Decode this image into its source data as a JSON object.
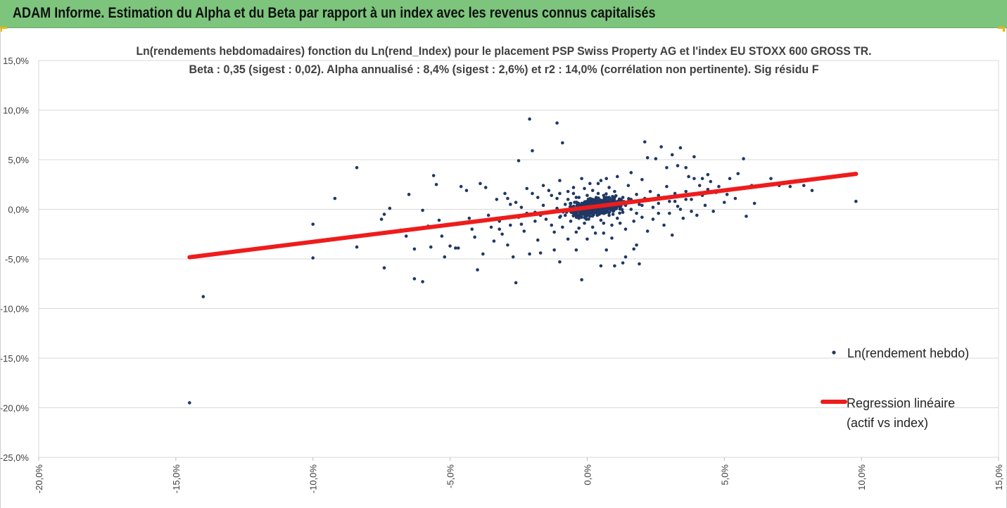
{
  "header": {
    "title": "ADAM Informe. Estimation du Alpha et du Beta par rapport à un index avec les revenus connus capitalisés",
    "background": "#7dc57d",
    "corner_color": "#f0b400"
  },
  "chart_data": {
    "type": "scatter",
    "title_line1": "Ln(rendements hebdomadaires) fonction du Ln(rend_Index) pour le placement PSP Swiss Property AG et l'index EU STOXX 600 GROSS TR.",
    "title_line2": "Beta : 0,35 (sigest : 0,02). Alpha annualisé : 8,4% (sigest : 2,6%) et r2 : 14,0% (corrélation non pertinente). Sig résidu F",
    "xlim": [
      -0.2,
      0.15
    ],
    "ylim": [
      -0.25,
      0.15
    ],
    "x_ticks": [
      {
        "value": -0.2,
        "label": "-20,0%"
      },
      {
        "value": -0.15,
        "label": "-15,0%"
      },
      {
        "value": -0.1,
        "label": "-10,0%"
      },
      {
        "value": -0.05,
        "label": "-5,0%"
      },
      {
        "value": 0.0,
        "label": "0,0%"
      },
      {
        "value": 0.05,
        "label": "5,0%"
      },
      {
        "value": 0.1,
        "label": "10,0%"
      },
      {
        "value": 0.15,
        "label": "15,0%"
      }
    ],
    "y_ticks": [
      {
        "value": 0.15,
        "label": "15,0%"
      },
      {
        "value": 0.1,
        "label": "10,0%"
      },
      {
        "value": 0.05,
        "label": "5,0%"
      },
      {
        "value": 0.0,
        "label": "0,0%"
      },
      {
        "value": -0.05,
        "label": "-5,0%"
      },
      {
        "value": -0.1,
        "label": "-10,0%"
      },
      {
        "value": -0.15,
        "label": "-15,0%"
      },
      {
        "value": -0.2,
        "label": "-20,0%"
      },
      {
        "value": -0.25,
        "label": "-25,0%"
      }
    ],
    "grid": true,
    "legend_position": "right",
    "series": [
      {
        "name": "Ln(rendement hebdo)",
        "kind": "scatter",
        "color": "#1f3864",
        "points": [
          [
            -0.145,
            -0.195
          ],
          [
            -0.14,
            -0.088
          ],
          [
            -0.14,
            -0.047
          ],
          [
            -0.1,
            -0.049
          ],
          [
            -0.1,
            -0.015
          ],
          [
            -0.092,
            0.011
          ],
          [
            -0.084,
            0.042
          ],
          [
            -0.084,
            -0.038
          ],
          [
            -0.074,
            -0.059
          ],
          [
            -0.074,
            -0.005
          ],
          [
            -0.075,
            -0.01
          ],
          [
            -0.072,
            0.001
          ],
          [
            -0.068,
            -0.021
          ],
          [
            -0.066,
            -0.027
          ],
          [
            -0.065,
            0.015
          ],
          [
            -0.063,
            -0.04
          ],
          [
            -0.063,
            -0.07
          ],
          [
            -0.06,
            -0.073
          ],
          [
            -0.06,
            -0.001
          ],
          [
            -0.058,
            -0.017
          ],
          [
            -0.057,
            -0.038
          ],
          [
            -0.056,
            0.034
          ],
          [
            -0.055,
            0.025
          ],
          [
            -0.054,
            -0.011
          ],
          [
            -0.053,
            -0.027
          ],
          [
            -0.052,
            -0.048
          ],
          [
            -0.05,
            -0.037
          ],
          [
            -0.048,
            -0.039
          ],
          [
            -0.047,
            -0.039
          ],
          [
            -0.046,
            0.023
          ],
          [
            -0.045,
            -0.014
          ],
          [
            -0.044,
            0.019
          ],
          [
            -0.043,
            -0.009
          ],
          [
            -0.042,
            -0.02
          ],
          [
            -0.041,
            -0.028
          ],
          [
            -0.04,
            -0.061
          ],
          [
            -0.039,
            0.026
          ],
          [
            -0.038,
            -0.045
          ],
          [
            -0.037,
            0.022
          ],
          [
            -0.036,
            -0.006
          ],
          [
            -0.035,
            -0.018
          ],
          [
            -0.034,
            -0.032
          ],
          [
            -0.033,
            0.01
          ],
          [
            -0.032,
            -0.012
          ],
          [
            -0.031,
            -0.025
          ],
          [
            -0.03,
            0.016
          ],
          [
            -0.029,
            -0.036
          ],
          [
            -0.028,
            0.005
          ],
          [
            -0.027,
            -0.048
          ],
          [
            -0.026,
            -0.074
          ],
          [
            -0.026,
            0.007
          ],
          [
            -0.025,
            0.049
          ],
          [
            -0.024,
            -0.015
          ],
          [
            -0.023,
            -0.022
          ],
          [
            -0.022,
            0.021
          ],
          [
            -0.021,
            -0.045
          ],
          [
            -0.02,
            0.059
          ],
          [
            -0.019,
            -0.003
          ],
          [
            -0.018,
            0.012
          ],
          [
            -0.018,
            -0.031
          ],
          [
            -0.017,
            -0.044
          ],
          [
            -0.016,
            0.024
          ],
          [
            -0.015,
            -0.01
          ],
          [
            -0.014,
            -0.003
          ],
          [
            -0.013,
            0.014
          ],
          [
            -0.012,
            -0.023
          ],
          [
            -0.012,
            -0.041
          ],
          [
            -0.011,
            0.001
          ],
          [
            -0.01,
            -0.008
          ],
          [
            -0.01,
            0.029
          ],
          [
            -0.009,
            0.067
          ],
          [
            -0.009,
            -0.018
          ],
          [
            -0.008,
            0.005
          ],
          [
            -0.007,
            -0.03
          ],
          [
            -0.007,
            0.018
          ],
          [
            -0.021,
            0.091
          ],
          [
            -0.011,
            0.087
          ],
          [
            -0.006,
            0.006
          ],
          [
            -0.006,
            -0.012
          ],
          [
            -0.005,
            0.002
          ],
          [
            -0.005,
            0.022
          ],
          [
            -0.004,
            -0.004
          ],
          [
            -0.004,
            -0.023
          ],
          [
            -0.003,
            0.012
          ],
          [
            -0.003,
            -0.009
          ],
          [
            -0.002,
            0.003
          ],
          [
            -0.002,
            0.031
          ],
          [
            -0.001,
            -0.014
          ],
          [
            -0.001,
            0.007
          ],
          [
            0.0,
            -0.001
          ],
          [
            0.0,
            0.014
          ],
          [
            0.0,
            -0.03
          ],
          [
            0.001,
            0.004
          ],
          [
            0.001,
            -0.007
          ],
          [
            0.002,
            0.019
          ],
          [
            0.002,
            -0.018
          ],
          [
            0.003,
            0.001
          ],
          [
            0.003,
            0.01
          ],
          [
            0.004,
            -0.004
          ],
          [
            0.004,
            0.026
          ],
          [
            0.005,
            -0.011
          ],
          [
            0.005,
            0.006
          ],
          [
            0.006,
            -0.024
          ],
          [
            0.006,
            0.014
          ],
          [
            0.007,
            0.0
          ],
          [
            0.007,
            -0.041
          ],
          [
            0.008,
            0.022
          ],
          [
            0.008,
            -0.006
          ],
          [
            0.009,
            0.009
          ],
          [
            0.009,
            -0.016
          ],
          [
            -0.029,
            0.011
          ],
          [
            -0.024,
            0.002
          ],
          [
            -0.02,
            0.016
          ],
          [
            -0.017,
            -0.006
          ],
          [
            -0.014,
            0.019
          ],
          [
            -0.011,
            0.011
          ],
          [
            -0.008,
            -0.006
          ],
          [
            -0.005,
            0.016
          ],
          [
            -0.003,
            -0.019
          ],
          [
            -0.001,
            0.021
          ],
          [
            0.001,
            0.026
          ],
          [
            0.003,
            -0.024
          ],
          [
            0.005,
            0.029
          ],
          [
            0.007,
            0.031
          ],
          [
            0.009,
            -0.029
          ],
          [
            0.01,
            0.003
          ],
          [
            0.01,
            0.018
          ],
          [
            0.011,
            -0.009
          ],
          [
            0.011,
            0.033
          ],
          [
            0.012,
            0.006
          ],
          [
            0.013,
            -0.003
          ],
          [
            0.013,
            0.012
          ],
          [
            0.014,
            -0.02
          ],
          [
            0.015,
            0.008
          ],
          [
            0.015,
            0.024
          ],
          [
            0.016,
            0.0
          ],
          [
            0.017,
            -0.012
          ],
          [
            0.018,
            0.015
          ],
          [
            0.018,
            -0.036
          ],
          [
            0.019,
            0.005
          ],
          [
            0.02,
            0.03
          ],
          [
            0.02,
            -0.008
          ],
          [
            0.021,
            0.011
          ],
          [
            0.022,
            -0.022
          ],
          [
            0.023,
            0.018
          ],
          [
            0.024,
            0.002
          ],
          [
            0.025,
            0.051
          ],
          [
            0.026,
            -0.004
          ],
          [
            0.026,
            0.014
          ],
          [
            0.027,
            0.063
          ],
          [
            0.028,
            -0.016
          ],
          [
            0.029,
            0.023
          ],
          [
            0.03,
            0.008
          ],
          [
            0.031,
            -0.026
          ],
          [
            0.032,
            0.016
          ],
          [
            0.033,
            0.003
          ],
          [
            0.034,
            0.062
          ],
          [
            0.035,
            -0.009
          ],
          [
            0.036,
            0.018
          ],
          [
            0.037,
            0.033
          ],
          [
            0.038,
            0.01
          ],
          [
            0.039,
            0.053
          ],
          [
            0.04,
            -0.006
          ],
          [
            0.041,
            0.024
          ],
          [
            0.042,
            0.014
          ],
          [
            0.043,
            0.004
          ],
          [
            0.044,
            0.02
          ],
          [
            0.045,
            0.028
          ],
          [
            0.046,
            -0.002
          ],
          [
            0.047,
            0.017
          ],
          [
            0.05,
            0.007
          ],
          [
            0.052,
            0.031
          ],
          [
            0.054,
            0.011
          ],
          [
            0.055,
            0.036
          ],
          [
            0.057,
            0.051
          ],
          [
            0.058,
            -0.007
          ],
          [
            0.06,
            0.024
          ],
          [
            0.061,
            0.006
          ],
          [
            0.067,
            0.031
          ],
          [
            0.07,
            0.024
          ],
          [
            0.074,
            0.023
          ],
          [
            0.079,
            0.024
          ],
          [
            0.082,
            0.019
          ],
          [
            0.098,
            0.008
          ],
          [
            0.021,
            0.068
          ],
          [
            0.01,
            -0.057
          ],
          [
            0.013,
            -0.054
          ],
          [
            0.019,
            -0.055
          ],
          [
            0.017,
            -0.04
          ],
          [
            0.014,
            -0.048
          ],
          [
            -0.01,
            -0.053
          ],
          [
            -0.002,
            -0.071
          ],
          [
            -0.004,
            -0.041
          ],
          [
            0.005,
            -0.057
          ],
          [
            0.016,
            0.037
          ],
          [
            0.022,
            0.052
          ],
          [
            0.029,
            0.042
          ],
          [
            0.031,
            0.055
          ],
          [
            0.033,
            0.044
          ],
          [
            0.036,
            0.042
          ],
          [
            0.039,
            0.031
          ],
          [
            0.042,
            0.031
          ],
          [
            0.044,
            0.035
          ],
          [
            0.048,
            0.023
          ],
          [
            0.051,
            0.015
          ],
          [
            -0.032,
            -0.02
          ],
          [
            -0.028,
            -0.016
          ],
          [
            -0.025,
            -0.008
          ],
          [
            -0.022,
            -0.004
          ],
          [
            -0.019,
            -0.012
          ],
          [
            -0.016,
            0.004
          ],
          [
            -0.013,
            -0.016
          ],
          [
            -0.01,
            0.016
          ],
          [
            -0.007,
            0.01
          ],
          [
            -0.004,
            0.012
          ],
          [
            -0.002,
            -0.008
          ],
          [
            0.002,
            0.008
          ],
          [
            0.004,
            0.016
          ],
          [
            0.006,
            -0.014
          ],
          [
            0.008,
            0.012
          ],
          [
            0.01,
            0.012
          ],
          [
            0.012,
            -0.014
          ],
          [
            0.014,
            0.004
          ],
          [
            0.016,
            0.01
          ],
          [
            0.018,
            -0.004
          ],
          [
            0.02,
            0.004
          ],
          [
            0.022,
            0.01
          ],
          [
            0.024,
            -0.01
          ],
          [
            0.026,
            0.006
          ],
          [
            0.028,
            0.012
          ],
          [
            0.03,
            -0.004
          ],
          [
            0.032,
            0.008
          ],
          [
            0.034,
            0.0
          ],
          [
            0.036,
            0.01
          ],
          [
            0.038,
            -0.002
          ]
        ]
      },
      {
        "name": "Regression linéaire",
        "name_line2": "(actif vs index)",
        "kind": "line",
        "color": "#ee1c1c",
        "points": [
          [
            -0.145,
            -0.0483
          ],
          [
            0.098,
            0.0357
          ]
        ]
      }
    ]
  }
}
